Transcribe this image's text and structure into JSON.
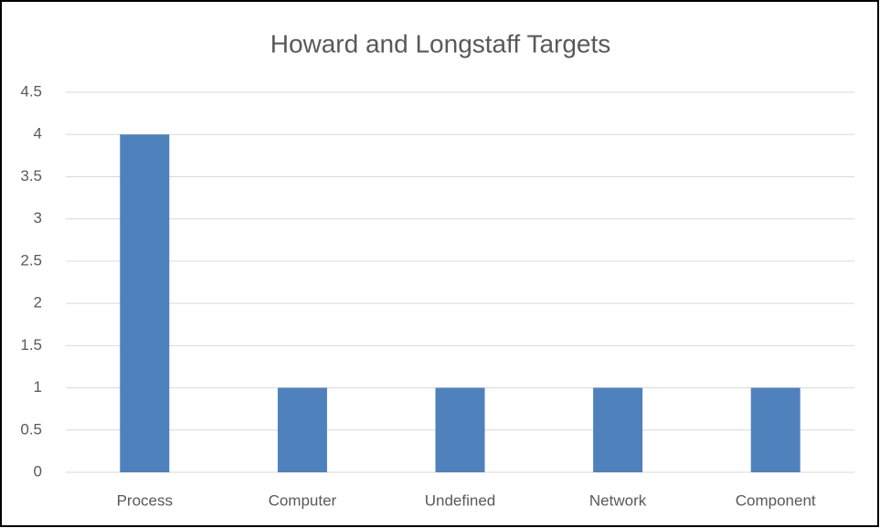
{
  "chart_data": {
    "type": "bar",
    "title": "Howard and Longstaff Targets",
    "categories": [
      "Process",
      "Computer",
      "Undefined",
      "Network",
      "Component"
    ],
    "values": [
      4,
      1,
      1,
      1,
      1
    ],
    "color": "#4f81bd",
    "ylim": [
      0,
      4.5
    ],
    "yticks": [
      0,
      0.5,
      1,
      1.5,
      2,
      2.5,
      3,
      3.5,
      4,
      4.5
    ],
    "grid": true
  }
}
